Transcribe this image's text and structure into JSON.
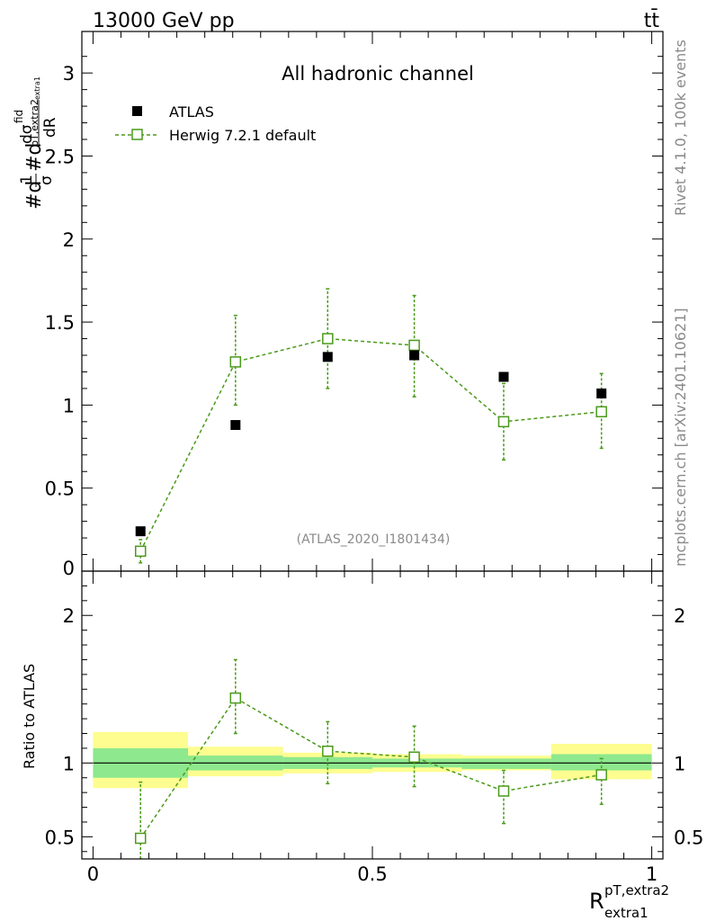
{
  "header": {
    "energy_label": "13000 GeV pp",
    "process_label": "tt̄",
    "channel_title": "All hadronic channel",
    "analysis_id": "(ATLAS_2020_I1801434)"
  },
  "side_labels": {
    "rivet": "Rivet 4.1.0,  100k events",
    "mcplots": "mcplots.cern.ch [arXiv:2401.10621]"
  },
  "legend": [
    {
      "label": "ATLAS",
      "marker": "filled-square",
      "color": "#000000"
    },
    {
      "label": "Herwig 7.2.1 default",
      "marker": "open-square",
      "color": "#4a9a1a"
    }
  ],
  "axis_text": {
    "y_main_a": "#d",
    "y_main_frac_num": "1",
    "y_main_frac_den": "σ",
    "y_main_b": "#d",
    "y_main_sig": "dσ",
    "y_main_sig_sup": "fid",
    "y_main_sub": "pT,extra2",
    "y_main_sub2": "extra1",
    "y_main_den": "dR",
    "y_ratio": "Ratio to ATLAS",
    "x_main": "R",
    "x_sup": "pT,extra2",
    "x_sub": "extra1"
  },
  "chart_data": [
    {
      "type": "scatter",
      "panel": "main",
      "xlim": [
        -0.02,
        1.02
      ],
      "ylim": [
        0,
        3.25
      ],
      "yticks": [
        0.5,
        1,
        1.5,
        2,
        2.5,
        3
      ],
      "ytick_labels": [
        "0.5",
        "1",
        "1.5",
        "2",
        "2.5",
        "3"
      ],
      "ytick_zero_label": "0",
      "series": [
        {
          "name": "ATLAS",
          "x": [
            0.085,
            0.255,
            0.42,
            0.575,
            0.735,
            0.91
          ],
          "y": [
            0.24,
            0.88,
            1.29,
            1.3,
            1.17,
            1.07
          ]
        },
        {
          "name": "Herwig 7.2.1 default",
          "x": [
            0.085,
            0.255,
            0.42,
            0.575,
            0.735,
            0.91
          ],
          "y": [
            0.12,
            1.26,
            1.4,
            1.36,
            0.9,
            0.96
          ],
          "yerr_low": [
            0.07,
            0.26,
            0.3,
            0.31,
            0.23,
            0.22
          ],
          "yerr_high": [
            0.07,
            0.28,
            0.3,
            0.3,
            0.23,
            0.23
          ]
        }
      ]
    },
    {
      "type": "scatter",
      "panel": "ratio",
      "ylabel": "Ratio to ATLAS",
      "xlim": [
        -0.02,
        1.02
      ],
      "ylim": [
        0.35,
        2.3
      ],
      "yticks": [
        0.5,
        1,
        2
      ],
      "ytick_labels": [
        "0.5",
        "1",
        "2"
      ],
      "xticks": [
        0,
        0.5,
        1
      ],
      "xtick_labels": [
        "0",
        "0.5",
        "1"
      ],
      "bands": {
        "edges": [
          0.0,
          0.17,
          0.34,
          0.5,
          0.66,
          0.82,
          1.0
        ],
        "inner_low": [
          0.9,
          0.95,
          0.96,
          0.97,
          0.96,
          0.95
        ],
        "inner_high": [
          1.1,
          1.05,
          1.04,
          1.03,
          1.03,
          1.06
        ],
        "outer_low": [
          0.83,
          0.91,
          0.93,
          0.94,
          0.95,
          0.89
        ],
        "outer_high": [
          1.21,
          1.11,
          1.07,
          1.06,
          1.05,
          1.13
        ]
      },
      "series": [
        {
          "name": "Herwig 7.2.1 default",
          "x": [
            0.085,
            0.255,
            0.42,
            0.575,
            0.735,
            0.91
          ],
          "y": [
            0.49,
            1.44,
            1.08,
            1.04,
            0.81,
            0.92
          ],
          "yerr_low": [
            0.14,
            0.24,
            0.22,
            0.2,
            0.22,
            0.2
          ],
          "yerr_high": [
            0.38,
            0.26,
            0.2,
            0.21,
            0.14,
            0.11
          ]
        }
      ]
    }
  ],
  "colors": {
    "data": "#000000",
    "mc": "#4a9a1a",
    "band_inner": "#8ee88e",
    "band_outer": "#fdfd90"
  }
}
